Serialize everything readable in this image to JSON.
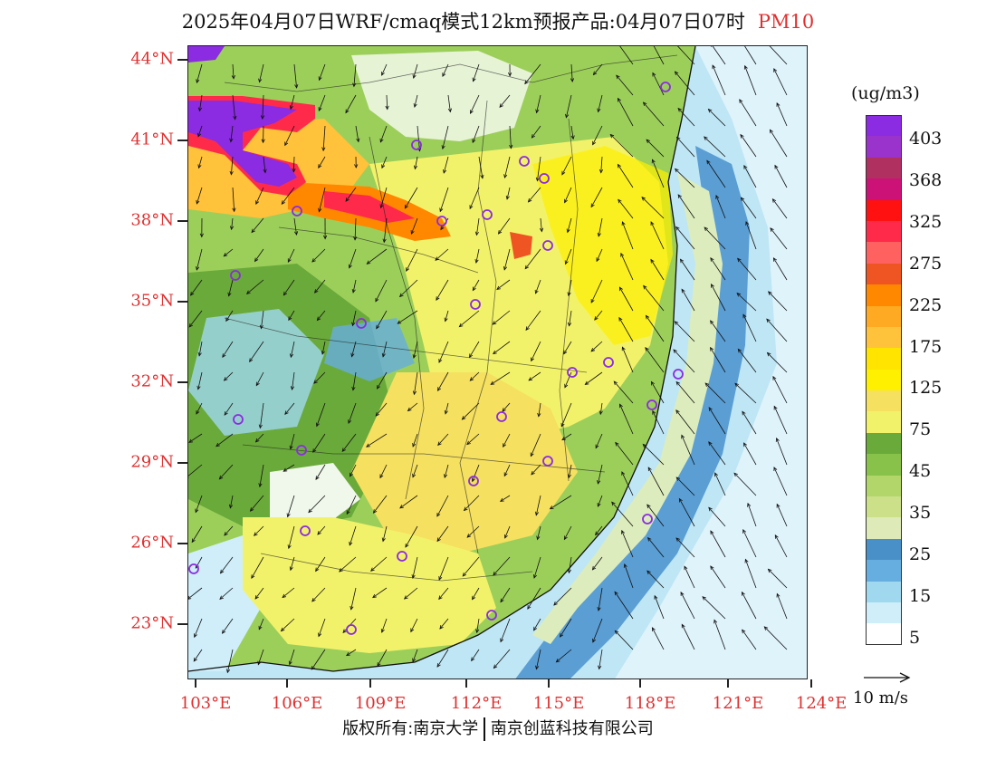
{
  "title": {
    "text": "2025年04月07日WRF/cmaq模式12km预报产品:04月07日07时",
    "pollutant": "PM10",
    "pollutant_color": "#e03030"
  },
  "axes": {
    "latitudes": [
      "44°N",
      "41°N",
      "38°N",
      "35°N",
      "32°N",
      "29°N",
      "26°N",
      "23°N"
    ],
    "longitudes": [
      "103°E",
      "106°E",
      "109°E",
      "112°E",
      "115°E",
      "118°E",
      "121°E",
      "124°E"
    ]
  },
  "legend": {
    "unit": "(ug/m3)",
    "colors": [
      "#8b2be2",
      "#9933cc",
      "#b03060",
      "#cc1177",
      "#ff1111",
      "#ff2a4a",
      "#ff6060",
      "#ee5522",
      "#ff8800",
      "#ffaa22",
      "#ffc23a",
      "#ffe400",
      "#fff000",
      "#f5e060",
      "#f2f26a",
      "#6aaa3a",
      "#88c24a",
      "#b2d66a",
      "#cce08a",
      "#deebb8",
      "#4a90c8",
      "#66aee0",
      "#a0d8f0",
      "#cfeefa",
      "#ffffff"
    ],
    "labels": [
      "403",
      "368",
      "325",
      "275",
      "225",
      "175",
      "125",
      "75",
      "45",
      "35",
      "25",
      "15",
      "5"
    ]
  },
  "wind_legend": {
    "label": "10 m/s"
  },
  "map": {
    "pollution_core_color": "#8b2be2",
    "city_marker_color": "#8b2be2",
    "boundary_color": "#111111"
  },
  "footer": {
    "left": "版权所有:南京大学",
    "right": "南京创蓝科技有限公司"
  }
}
